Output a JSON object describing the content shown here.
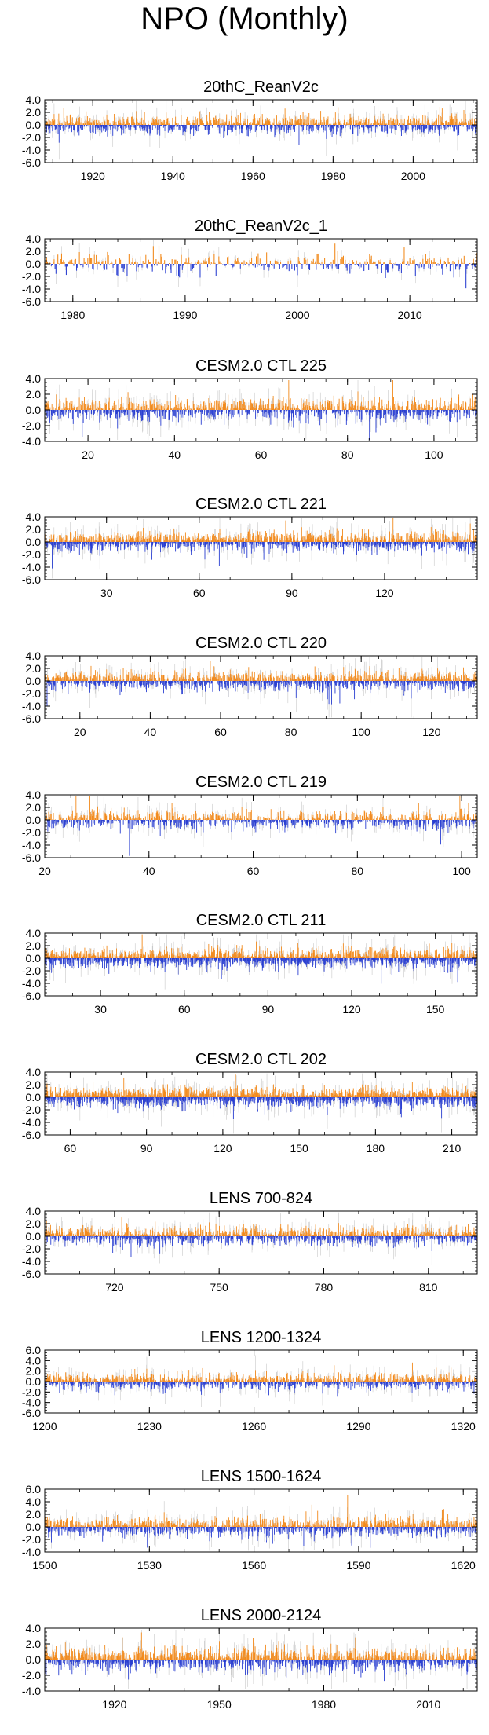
{
  "title": "NPO (Monthly)",
  "colors": {
    "positive": "#f28a1c",
    "negative": "#2a3fd1",
    "faint": "#c9c9c9",
    "axis": "#000000"
  },
  "chart_data": [
    {
      "type": "bar",
      "title": "20thC_ReanV2c",
      "xlim": [
        1908,
        2016
      ],
      "ylim": [
        -6,
        4
      ],
      "yticks": [
        4.0,
        2.0,
        0.0,
        -2.0,
        -4.0,
        -6.0
      ],
      "ytick_labels": [
        "4.0",
        "2.0",
        "0.0",
        "-2.0",
        "-4.0",
        "-6.0"
      ],
      "xticks": [
        1920,
        1940,
        1960,
        1980,
        2000
      ],
      "xtick_labels": [
        "1920",
        "1940",
        "1960",
        "1980",
        "2000"
      ],
      "xminor": 5,
      "seed": 11
    },
    {
      "type": "bar",
      "title": "20thC_ReanV2c_1",
      "xlim": [
        1977.5,
        2016
      ],
      "ylim": [
        -6,
        4
      ],
      "yticks": [
        4.0,
        2.0,
        0.0,
        -2.0,
        -4.0,
        -6.0
      ],
      "ytick_labels": [
        "4.0",
        "2.0",
        "0.0",
        "-2.0",
        "-4.0",
        "-6.0"
      ],
      "xticks": [
        1980,
        1990,
        2000,
        2010
      ],
      "xtick_labels": [
        "1980",
        "1990",
        "2000",
        "2010"
      ],
      "xminor": 2,
      "seed": 23
    },
    {
      "type": "bar",
      "title": "CESM2.0 CTL 225",
      "xlim": [
        10,
        110
      ],
      "ylim": [
        -4,
        4
      ],
      "yticks": [
        4.0,
        2.0,
        0.0,
        -2.0,
        -4.0
      ],
      "ytick_labels": [
        "4.0",
        "2.0",
        "0.0",
        "-2.0",
        "-4.0"
      ],
      "xticks": [
        20,
        40,
        60,
        80,
        100
      ],
      "xtick_labels": [
        "20",
        "40",
        "60",
        "80",
        "100"
      ],
      "xminor": 5,
      "seed": 37
    },
    {
      "type": "bar",
      "title": "CESM2.0 CTL 221",
      "xlim": [
        10,
        150
      ],
      "ylim": [
        -6,
        4
      ],
      "yticks": [
        4.0,
        2.0,
        0.0,
        -2.0,
        -4.0,
        -6.0
      ],
      "ytick_labels": [
        "4.0",
        "2.0",
        "0.0",
        "-2.0",
        "-4.0",
        "-6.0"
      ],
      "xticks": [
        30,
        60,
        90,
        120
      ],
      "xtick_labels": [
        "30",
        "60",
        "90",
        "120"
      ],
      "xminor": 10,
      "seed": 41
    },
    {
      "type": "bar",
      "title": "CESM2.0 CTL 220",
      "xlim": [
        10,
        133
      ],
      "ylim": [
        -6,
        4
      ],
      "yticks": [
        4.0,
        2.0,
        0.0,
        -2.0,
        -4.0,
        -6.0
      ],
      "ytick_labels": [
        "4.0",
        "2.0",
        "0.0",
        "-2.0",
        "-4.0",
        "-6.0"
      ],
      "xticks": [
        20,
        40,
        60,
        80,
        100,
        120
      ],
      "xtick_labels": [
        "20",
        "40",
        "60",
        "80",
        "100",
        "120"
      ],
      "xminor": 5,
      "seed": 53
    },
    {
      "type": "bar",
      "title": "CESM2.0 CTL 219",
      "xlim": [
        20,
        103
      ],
      "ylim": [
        -6,
        4
      ],
      "yticks": [
        4.0,
        2.0,
        0.0,
        -2.0,
        -4.0,
        -6.0
      ],
      "ytick_labels": [
        "4.0",
        "2.0",
        "0.0",
        "-2.0",
        "-4.0",
        "-6.0"
      ],
      "xticks": [
        20,
        40,
        60,
        80,
        100
      ],
      "xtick_labels": [
        "20",
        "40",
        "60",
        "80",
        "100"
      ],
      "xminor": 5,
      "seed": 67
    },
    {
      "type": "bar",
      "title": "CESM2.0 CTL 211",
      "xlim": [
        10,
        165
      ],
      "ylim": [
        -6,
        4
      ],
      "yticks": [
        4.0,
        2.0,
        0.0,
        -2.0,
        -4.0,
        -6.0
      ],
      "ytick_labels": [
        "4.0",
        "2.0",
        "0.0",
        "-2.0",
        "-4.0",
        "-6.0"
      ],
      "xticks": [
        30,
        60,
        90,
        120,
        150
      ],
      "xtick_labels": [
        "30",
        "60",
        "90",
        "120",
        "150"
      ],
      "xminor": 10,
      "seed": 79
    },
    {
      "type": "bar",
      "title": "CESM2.0 CTL 202",
      "xlim": [
        50,
        220
      ],
      "ylim": [
        -6,
        4
      ],
      "yticks": [
        4.0,
        2.0,
        0.0,
        -2.0,
        -4.0,
        -6.0
      ],
      "ytick_labels": [
        "4.0",
        "2.0",
        "0.0",
        "-2.0",
        "-4.0",
        "-6.0"
      ],
      "xticks": [
        60,
        90,
        120,
        150,
        180,
        210
      ],
      "xtick_labels": [
        "60",
        "90",
        "120",
        "150",
        "180",
        "210"
      ],
      "xminor": 10,
      "seed": 83
    },
    {
      "type": "bar",
      "title": "LENS 700-824",
      "xlim": [
        700,
        824
      ],
      "ylim": [
        -6,
        4
      ],
      "yticks": [
        4.0,
        2.0,
        0.0,
        -2.0,
        -4.0,
        -6.0
      ],
      "ytick_labels": [
        "4.0",
        "2.0",
        "0.0",
        "-2.0",
        "-4.0",
        "-6.0"
      ],
      "xticks": [
        720,
        750,
        780,
        810
      ],
      "xtick_labels": [
        "720",
        "750",
        "780",
        "810"
      ],
      "xminor": 10,
      "seed": 97
    },
    {
      "type": "bar",
      "title": "LENS 1200-1324",
      "xlim": [
        1200,
        1324
      ],
      "ylim": [
        -6,
        6
      ],
      "yticks": [
        6.0,
        4.0,
        2.0,
        0.0,
        -2.0,
        -4.0,
        -6.0
      ],
      "ytick_labels": [
        "6.0",
        "4.0",
        "2.0",
        "0.0",
        "-2.0",
        "-4.0",
        "-6.0"
      ],
      "xticks": [
        1200,
        1230,
        1260,
        1290,
        1320
      ],
      "xtick_labels": [
        "1200",
        "1230",
        "1260",
        "1290",
        "1320"
      ],
      "xminor": 10,
      "seed": 101
    },
    {
      "type": "bar",
      "title": "LENS 1500-1624",
      "xlim": [
        1500,
        1624
      ],
      "ylim": [
        -4,
        6
      ],
      "yticks": [
        6.0,
        4.0,
        2.0,
        0.0,
        -2.0,
        -4.0
      ],
      "ytick_labels": [
        "6.0",
        "4.0",
        "2.0",
        "0.0",
        "-2.0",
        "-4.0"
      ],
      "xticks": [
        1500,
        1530,
        1560,
        1590,
        1620
      ],
      "xtick_labels": [
        "1500",
        "1530",
        "1560",
        "1590",
        "1620"
      ],
      "xminor": 10,
      "seed": 113
    },
    {
      "type": "bar",
      "title": "LENS 2000-2124",
      "xlim": [
        1900,
        2024
      ],
      "ylim": [
        -4,
        4
      ],
      "yticks": [
        4.0,
        2.0,
        0.0,
        -2.0,
        -4.0
      ],
      "ytick_labels": [
        "4.0",
        "2.0",
        "0.0",
        "-2.0",
        "-4.0"
      ],
      "xticks": [
        1920,
        1950,
        1980,
        2010
      ],
      "xtick_labels": [
        "1920",
        "1950",
        "1980",
        "2010"
      ],
      "xminor": 10,
      "seed": 127
    }
  ]
}
